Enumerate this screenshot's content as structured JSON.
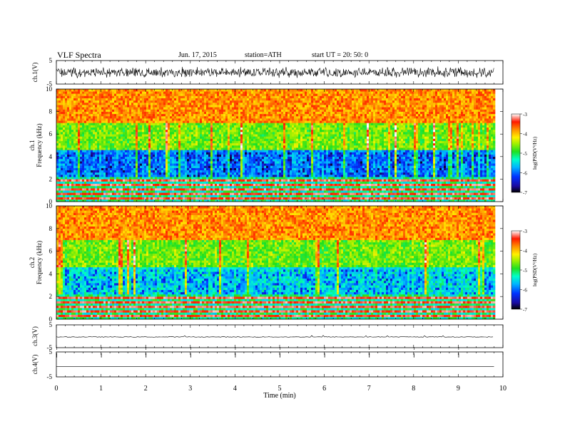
{
  "header": {
    "title": "VLF  Spectra",
    "date": "Jun. 17, 2015",
    "station": "station=ATH",
    "start": "start  UT  =   20: 50: 0"
  },
  "chart_data": [
    {
      "type": "line",
      "panel": "ch1-waveform",
      "ylabel": "ch.1(V)",
      "ylim": [
        -5,
        5
      ],
      "yticks": [
        "5",
        "-5"
      ],
      "xlim": [
        0,
        10
      ],
      "data_end_min": 9.8,
      "amplitude_range_V": [
        -2.5,
        2.5
      ]
    },
    {
      "type": "heatmap",
      "panel": "ch1-spectrogram",
      "ylabel": "ch.1\nFrequency  (kHz)",
      "ylim": [
        0,
        10
      ],
      "yticks": [
        "0",
        "2",
        "4",
        "6",
        "8",
        "10"
      ],
      "xlim": [
        0,
        10
      ],
      "data_end_min": 9.8,
      "colorbar": {
        "label": "log(PSD(V²/Hz)",
        "range": [
          -7,
          -3
        ],
        "ticks": [
          "-3",
          "-4",
          "-5",
          "-6",
          "-7"
        ]
      },
      "approx_logpsd_by_band": [
        {
          "freq_khz": [
            0,
            2
          ],
          "logpsd": -3.6,
          "note": "horizontal interference lines"
        },
        {
          "freq_khz": [
            2,
            4.5
          ],
          "logpsd": -6.0
        },
        {
          "freq_khz": [
            4.5,
            7
          ],
          "logpsd": -4.8
        },
        {
          "freq_khz": [
            7,
            10
          ],
          "logpsd": -3.8
        }
      ]
    },
    {
      "type": "heatmap",
      "panel": "ch2-spectrogram",
      "ylabel": "ch.2\nFrequency  (kHz)",
      "ylim": [
        0,
        10
      ],
      "yticks": [
        "0",
        "2",
        "4",
        "6",
        "8",
        "10"
      ],
      "xlim": [
        0,
        10
      ],
      "data_end_min": 9.8,
      "colorbar": {
        "label": "log(PSD(V²/Hz)",
        "range": [
          -7,
          -3
        ],
        "ticks": [
          "-3",
          "-4",
          "-5",
          "-6",
          "-7"
        ]
      },
      "approx_logpsd_by_band": [
        {
          "freq_khz": [
            0,
            2
          ],
          "logpsd": -3.7,
          "note": "horizontal interference lines"
        },
        {
          "freq_khz": [
            2,
            4.5
          ],
          "logpsd": -5.6
        },
        {
          "freq_khz": [
            4.5,
            7
          ],
          "logpsd": -4.8
        },
        {
          "freq_khz": [
            7,
            10
          ],
          "logpsd": -3.8
        }
      ]
    },
    {
      "type": "line",
      "panel": "ch3-waveform",
      "ylabel": "ch.3(V)",
      "ylim": [
        -5,
        5
      ],
      "yticks": [
        "5",
        "-5"
      ],
      "xlim": [
        0,
        10
      ],
      "data_end_min": 9.8,
      "level_V": -0.3
    },
    {
      "type": "line",
      "panel": "ch4-waveform",
      "ylabel": "ch.4(V)",
      "ylim": [
        -5,
        5
      ],
      "yticks": [
        "5",
        "-5"
      ],
      "xlim": [
        0,
        10
      ],
      "data_end_min": 9.8,
      "level_V": -0.8,
      "pulse_times_min": [
        0,
        1,
        2,
        3,
        4,
        5,
        6,
        7,
        8,
        9
      ]
    }
  ],
  "x_axis": {
    "label": "Time  (min)",
    "ticks": [
      "0",
      "1",
      "2",
      "3",
      "4",
      "5",
      "6",
      "7",
      "8",
      "9",
      "10"
    ]
  }
}
